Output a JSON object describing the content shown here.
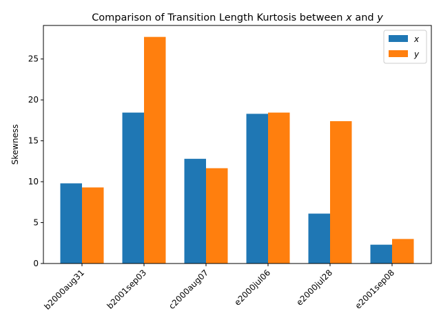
{
  "chart_data": {
    "type": "bar",
    "title": "Comparison of Transition Length Kurtosis between",
    "title_var_x": "x",
    "title_and": "and",
    "title_var_y": "y",
    "xlabel": "",
    "ylabel": "Skewness",
    "categories": [
      "b2000aug31",
      "b2001sep03",
      "c2000aug07",
      "e2000jul06",
      "e2000jul28",
      "e2001sep08"
    ],
    "series": [
      {
        "name": "x",
        "color": "#1f77b4",
        "values": [
          9.8,
          18.45,
          12.8,
          18.3,
          6.1,
          2.3
        ]
      },
      {
        "name": "y",
        "color": "#ff7f0e",
        "values": [
          9.3,
          27.7,
          11.65,
          18.45,
          17.4,
          3.0
        ]
      }
    ],
    "ylim": [
      0,
      29.1
    ],
    "yticks": [
      0,
      5,
      10,
      15,
      20,
      25
    ],
    "grid": false,
    "legend": "top-right"
  }
}
